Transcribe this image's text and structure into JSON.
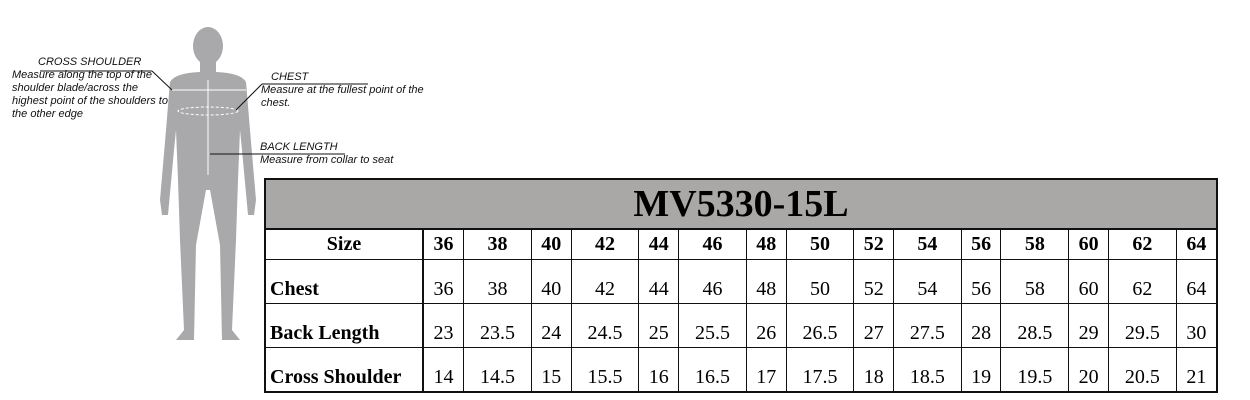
{
  "annotations": {
    "cross_shoulder": {
      "heading": "CROSS SHOULDER",
      "text": "Measure along the top of the shoulder blade/across the highest point of the shoulders to the other edge"
    },
    "chest": {
      "heading": "CHEST",
      "text": "Measure at the fullest point of the chest."
    },
    "back_length": {
      "heading": "BACK LENGTH",
      "text": "Measure from collar to seat"
    }
  },
  "table": {
    "title": "MV5330-15L",
    "size_label": "Size",
    "sizes": [
      "36",
      "38",
      "40",
      "42",
      "44",
      "46",
      "48",
      "50",
      "52",
      "54",
      "56",
      "58",
      "60",
      "62",
      "64"
    ],
    "rows": [
      {
        "label": "Chest",
        "values": [
          "36",
          "38",
          "40",
          "42",
          "44",
          "46",
          "48",
          "50",
          "52",
          "54",
          "56",
          "58",
          "60",
          "62",
          "64"
        ]
      },
      {
        "label": "Back Length",
        "values": [
          "23",
          "23.5",
          "24",
          "24.5",
          "25",
          "25.5",
          "26",
          "26.5",
          "27",
          "27.5",
          "28",
          "28.5",
          "29",
          "29.5",
          "30"
        ]
      },
      {
        "label": "Cross Shoulder",
        "values": [
          "14",
          "14.5",
          "15",
          "15.5",
          "16",
          "16.5",
          "17",
          "17.5",
          "18",
          "18.5",
          "19",
          "19.5",
          "20",
          "20.5",
          "21"
        ]
      }
    ]
  },
  "colors": {
    "silhouette": "#a9a9ab",
    "title_bg": "#aaa7a7"
  }
}
